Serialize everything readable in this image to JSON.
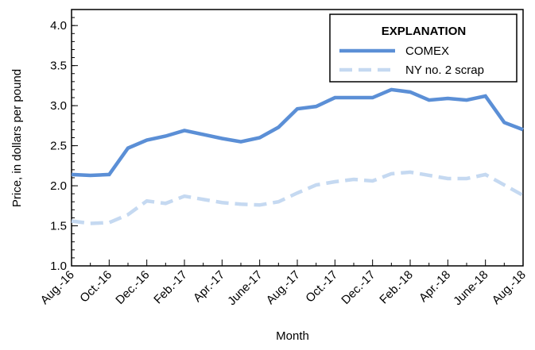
{
  "chart_data": {
    "type": "line",
    "x_label": "Month",
    "y_label": "Price, in dollars per pound",
    "legend_title": "EXPLANATION",
    "legend_position": "upper right",
    "categories": [
      "Aug.-16",
      null,
      "Oct.-16",
      null,
      "Dec.-16",
      null,
      "Feb.-17",
      null,
      "Apr.-17",
      null,
      "June-17",
      null,
      "Aug.-17",
      null,
      "Oct.-17",
      null,
      "Dec.-17",
      null,
      "Feb.-18",
      null,
      "Apr.-18",
      null,
      "June-18",
      null,
      "Aug.-18"
    ],
    "series": [
      {
        "name": "COMEX",
        "color": "#5b8fd6",
        "dashed": false,
        "values": [
          2.14,
          2.13,
          2.14,
          2.47,
          2.57,
          2.62,
          2.69,
          2.64,
          2.59,
          2.55,
          2.6,
          2.73,
          2.96,
          2.99,
          3.1,
          3.1,
          3.1,
          3.2,
          3.17,
          3.07,
          3.09,
          3.07,
          3.12,
          2.79,
          2.7
        ]
      },
      {
        "name": "NY no. 2 scrap",
        "color": "#c5d9f1",
        "dashed": true,
        "values": [
          1.56,
          1.53,
          1.54,
          1.64,
          1.81,
          1.78,
          1.87,
          1.83,
          1.79,
          1.77,
          1.76,
          1.8,
          1.91,
          2.01,
          2.05,
          2.08,
          2.06,
          2.15,
          2.17,
          2.13,
          2.09,
          2.09,
          2.14,
          2.01,
          1.88
        ]
      }
    ],
    "ylim": [
      1.0,
      4.2
    ],
    "yticks": [
      {
        "value": 1,
        "label": "1.0"
      },
      1.5,
      {
        "value": 2,
        "label": "2.0"
      },
      2.5,
      {
        "value": 3,
        "label": "3.0"
      },
      3.5,
      {
        "value": 4,
        "label": "4.0"
      }
    ]
  }
}
